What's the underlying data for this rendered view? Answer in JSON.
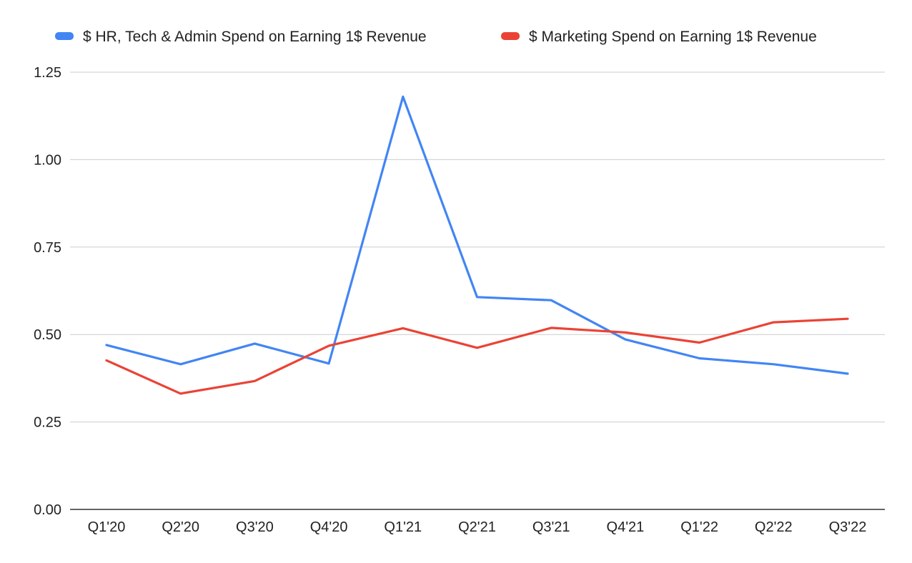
{
  "chart_data": {
    "type": "line",
    "title": "",
    "xlabel": "",
    "ylabel": "",
    "categories": [
      "Q1'20",
      "Q2'20",
      "Q3'20",
      "Q4'20",
      "Q1'21",
      "Q2'21",
      "Q3'21",
      "Q4'21",
      "Q1'22",
      "Q2'22",
      "Q3'22"
    ],
    "ylim": [
      0,
      1.25
    ],
    "yticks": [
      "0.00",
      "0.25",
      "0.50",
      "0.75",
      "1.00",
      "1.25"
    ],
    "grid": true,
    "legend_position": "top",
    "series": [
      {
        "name": "$ HR, Tech & Admin Spend on Earning 1$ Revenue",
        "color": "#4285f4",
        "values": [
          0.47,
          0.415,
          0.474,
          0.417,
          1.18,
          0.607,
          0.598,
          0.486,
          0.432,
          0.415,
          0.388
        ]
      },
      {
        "name": "$ Marketing Spend on Earning 1$ Revenue",
        "color": "#ea4335",
        "values": [
          0.426,
          0.331,
          0.367,
          0.468,
          0.518,
          0.462,
          0.519,
          0.506,
          0.477,
          0.535,
          0.545
        ]
      }
    ]
  }
}
